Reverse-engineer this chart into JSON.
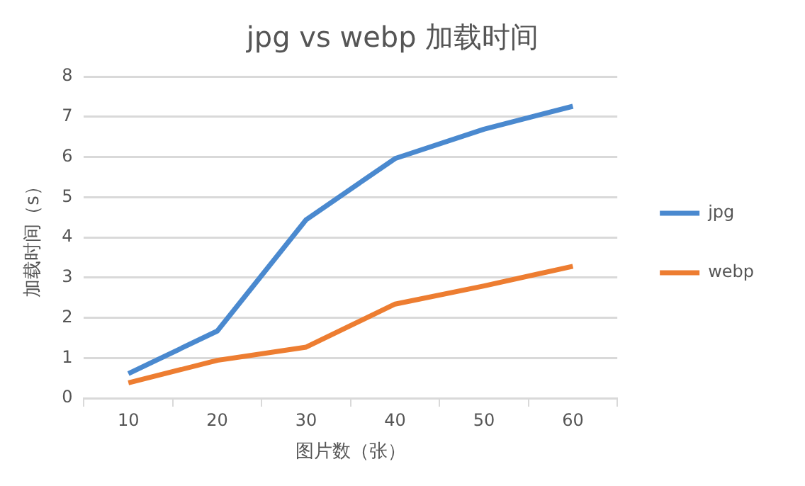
{
  "chart_data": {
    "type": "line",
    "title": "jpg vs webp 加载时间",
    "xlabel": "图片数（张）",
    "ylabel": "加载时间（s）",
    "categories": [
      "10",
      "20",
      "30",
      "40",
      "50",
      "60"
    ],
    "series": [
      {
        "name": "jpg",
        "color": "#4a89cf",
        "values": [
          0.61,
          1.67,
          4.44,
          5.96,
          6.69,
          7.26
        ]
      },
      {
        "name": "webp",
        "color": "#ed7d31",
        "values": [
          0.38,
          0.94,
          1.27,
          2.34,
          2.79,
          3.28
        ]
      }
    ],
    "ylim": [
      0,
      8
    ],
    "yticks": [
      0,
      1,
      2,
      3,
      4,
      5,
      6,
      7,
      8
    ],
    "grid": "y",
    "legend": "right",
    "marker": "none",
    "line_style": "solid"
  }
}
